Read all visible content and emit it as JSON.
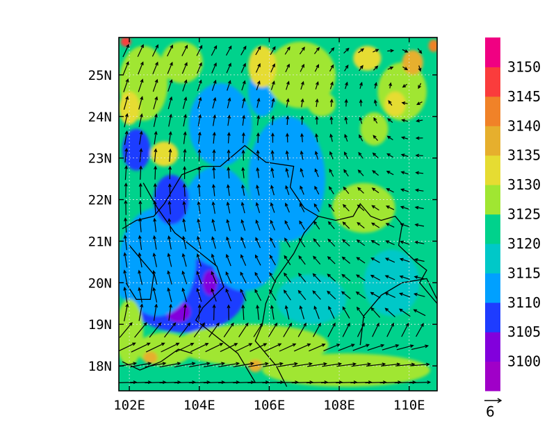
{
  "map": {
    "lon_range": [
      101.7,
      110.8
    ],
    "lat_range": [
      17.4,
      25.9
    ],
    "lon_ticks": [
      {
        "value": 102,
        "label": "102E"
      },
      {
        "value": 104,
        "label": "104E"
      },
      {
        "value": 106,
        "label": "106E"
      },
      {
        "value": 108,
        "label": "108E"
      },
      {
        "value": 110,
        "label": "110E"
      }
    ],
    "lat_ticks": [
      {
        "value": 18,
        "label": "18N"
      },
      {
        "value": 19,
        "label": "19N"
      },
      {
        "value": 20,
        "label": "20N"
      },
      {
        "value": 21,
        "label": "21N"
      },
      {
        "value": 22,
        "label": "22N"
      },
      {
        "value": 23,
        "label": "23N"
      },
      {
        "value": 24,
        "label": "24N"
      },
      {
        "value": 25,
        "label": "25N"
      }
    ],
    "grid": true,
    "field": "geopotential height (shaded) with wind vectors",
    "background_level": 3120
  },
  "colorbar": {
    "levels": [
      3100,
      3105,
      3110,
      3115,
      3120,
      3125,
      3130,
      3135,
      3140,
      3145,
      3150
    ],
    "labels": [
      "3100",
      "3105",
      "3110",
      "3115",
      "3120",
      "3125",
      "3130",
      "3135",
      "3140",
      "3145",
      "3150"
    ],
    "colors": [
      "#a000c8",
      "#8200dc",
      "#1e3cff",
      "#00a0ff",
      "#00c8c8",
      "#00d28c",
      "#a0e632",
      "#e6dc32",
      "#e6af2d",
      "#f08228",
      "#fa3c3c",
      "#f00082"
    ]
  },
  "reference_vector": {
    "value": 6,
    "label": "6"
  },
  "blobs": [
    {
      "lon": 103.6,
      "lat": 19.7,
      "rx": 1.7,
      "ry": 0.9,
      "level": 3105
    },
    {
      "lon": 103.4,
      "lat": 19.3,
      "rx": 0.35,
      "ry": 0.25,
      "level": 3100
    },
    {
      "lon": 104.2,
      "lat": 21.8,
      "rx": 0.25,
      "ry": 0.4,
      "level": 3100
    },
    {
      "lon": 104.3,
      "lat": 20.0,
      "rx": 0.2,
      "ry": 0.3,
      "level": 3100
    },
    {
      "lon": 102.8,
      "lat": 20.5,
      "rx": 1.1,
      "ry": 1.3,
      "level": 3110
    },
    {
      "lon": 104.5,
      "lat": 21.6,
      "rx": 1.0,
      "ry": 1.2,
      "level": 3110
    },
    {
      "lon": 103.2,
      "lat": 22.0,
      "rx": 0.5,
      "ry": 0.6,
      "level": 3105
    },
    {
      "lon": 104.6,
      "lat": 23.8,
      "rx": 0.9,
      "ry": 1.0,
      "level": 3110
    },
    {
      "lon": 106.5,
      "lat": 22.5,
      "rx": 1.1,
      "ry": 1.5,
      "level": 3110
    },
    {
      "lon": 105.3,
      "lat": 20.8,
      "rx": 1.0,
      "ry": 1.0,
      "level": 3110
    },
    {
      "lon": 102.2,
      "lat": 23.2,
      "rx": 0.4,
      "ry": 0.5,
      "level": 3105
    },
    {
      "lon": 105.8,
      "lat": 24.6,
      "rx": 0.4,
      "ry": 0.6,
      "level": 3110
    },
    {
      "lon": 103.0,
      "lat": 18.4,
      "rx": 0.8,
      "ry": 0.4,
      "level": 3125
    },
    {
      "lon": 105.5,
      "lat": 18.5,
      "rx": 2.2,
      "ry": 0.5,
      "level": 3125
    },
    {
      "lon": 108.2,
      "lat": 17.9,
      "rx": 2.4,
      "ry": 0.4,
      "level": 3125
    },
    {
      "lon": 102.0,
      "lat": 18.8,
      "rx": 0.4,
      "ry": 0.8,
      "level": 3125
    },
    {
      "lon": 102.4,
      "lat": 24.8,
      "rx": 0.7,
      "ry": 0.9,
      "level": 3125
    },
    {
      "lon": 103.5,
      "lat": 25.3,
      "rx": 0.6,
      "ry": 0.5,
      "level": 3125
    },
    {
      "lon": 106.9,
      "lat": 25.0,
      "rx": 1.0,
      "ry": 0.8,
      "level": 3125
    },
    {
      "lon": 109.8,
      "lat": 24.6,
      "rx": 0.7,
      "ry": 0.7,
      "level": 3125
    },
    {
      "lon": 108.7,
      "lat": 21.8,
      "rx": 0.9,
      "ry": 0.6,
      "level": 3125
    },
    {
      "lon": 107.5,
      "lat": 24.3,
      "rx": 0.4,
      "ry": 0.3,
      "level": 3125
    },
    {
      "lon": 109.0,
      "lat": 23.7,
      "rx": 0.4,
      "ry": 0.4,
      "level": 3125
    },
    {
      "lon": 102.0,
      "lat": 24.2,
      "rx": 0.3,
      "ry": 0.4,
      "level": 3130
    },
    {
      "lon": 103.0,
      "lat": 23.1,
      "rx": 0.4,
      "ry": 0.3,
      "level": 3130
    },
    {
      "lon": 105.8,
      "lat": 25.2,
      "rx": 0.4,
      "ry": 0.5,
      "level": 3130
    },
    {
      "lon": 109.6,
      "lat": 24.3,
      "rx": 0.3,
      "ry": 0.3,
      "level": 3130
    },
    {
      "lon": 108.8,
      "lat": 25.4,
      "rx": 0.4,
      "ry": 0.3,
      "level": 3130
    },
    {
      "lon": 110.1,
      "lat": 25.3,
      "rx": 0.3,
      "ry": 0.3,
      "level": 3135
    },
    {
      "lon": 110.7,
      "lat": 25.7,
      "rx": 0.15,
      "ry": 0.15,
      "level": 3140
    },
    {
      "lon": 101.9,
      "lat": 25.8,
      "rx": 0.15,
      "ry": 0.12,
      "level": 3145
    },
    {
      "lon": 105.6,
      "lat": 18.0,
      "rx": 0.2,
      "ry": 0.15,
      "level": 3135
    },
    {
      "lon": 102.6,
      "lat": 18.2,
      "rx": 0.2,
      "ry": 0.15,
      "level": 3135
    },
    {
      "lon": 101.9,
      "lat": 20.0,
      "rx": 0.3,
      "ry": 0.4,
      "level": 3110
    },
    {
      "lon": 107.2,
      "lat": 19.6,
      "rx": 1.0,
      "ry": 0.6,
      "level": 3115
    },
    {
      "lon": 109.5,
      "lat": 20.0,
      "rx": 0.8,
      "ry": 0.8,
      "level": 3115
    }
  ],
  "coastlines": [
    [
      [
        101.8,
        21.3
      ],
      [
        102.2,
        21.5
      ],
      [
        102.7,
        21.6
      ],
      [
        103.0,
        21.9
      ],
      [
        103.5,
        22.6
      ],
      [
        104.1,
        22.8
      ],
      [
        104.6,
        22.8
      ],
      [
        105.3,
        23.3
      ],
      [
        105.9,
        22.9
      ],
      [
        106.7,
        22.8
      ],
      [
        106.6,
        22.3
      ],
      [
        107.0,
        21.8
      ],
      [
        107.4,
        21.6
      ]
    ],
    [
      [
        107.4,
        21.6
      ],
      [
        107.9,
        21.5
      ],
      [
        108.4,
        21.6
      ],
      [
        108.6,
        21.9
      ],
      [
        108.9,
        21.6
      ],
      [
        109.2,
        21.5
      ],
      [
        109.6,
        21.6
      ],
      [
        109.8,
        21.4
      ],
      [
        109.7,
        20.9
      ],
      [
        110.2,
        20.5
      ],
      [
        110.5,
        20.3
      ],
      [
        110.3,
        20.0
      ],
      [
        110.6,
        19.7
      ],
      [
        110.8,
        19.5
      ]
    ],
    [
      [
        108.6,
        18.5
      ],
      [
        108.7,
        19.2
      ],
      [
        109.2,
        19.7
      ],
      [
        109.8,
        20.0
      ],
      [
        110.5,
        20.1
      ],
      [
        110.8,
        19.6
      ]
    ],
    [
      [
        107.4,
        21.6
      ],
      [
        107.0,
        21.2
      ],
      [
        106.7,
        20.7
      ],
      [
        106.2,
        20.1
      ],
      [
        105.9,
        19.5
      ],
      [
        105.8,
        19.0
      ],
      [
        105.6,
        18.6
      ],
      [
        106.2,
        18.0
      ],
      [
        106.5,
        17.5
      ]
    ],
    [
      [
        102.4,
        22.4
      ],
      [
        102.8,
        21.8
      ],
      [
        103.3,
        21.2
      ],
      [
        103.9,
        20.8
      ],
      [
        104.5,
        20.4
      ],
      [
        104.7,
        19.9
      ],
      [
        104.1,
        19.4
      ],
      [
        103.9,
        19.1
      ],
      [
        104.5,
        18.7
      ],
      [
        105.1,
        18.3
      ],
      [
        105.6,
        17.6
      ]
    ],
    [
      [
        101.8,
        18.1
      ],
      [
        102.3,
        17.9
      ],
      [
        102.9,
        18.1
      ],
      [
        103.4,
        18.4
      ],
      [
        103.8,
        18.3
      ]
    ],
    [
      [
        101.9,
        20.0
      ],
      [
        102.2,
        19.6
      ],
      [
        102.6,
        19.6
      ],
      [
        102.7,
        20.2
      ],
      [
        102.3,
        20.6
      ],
      [
        102.0,
        20.9
      ]
    ]
  ]
}
